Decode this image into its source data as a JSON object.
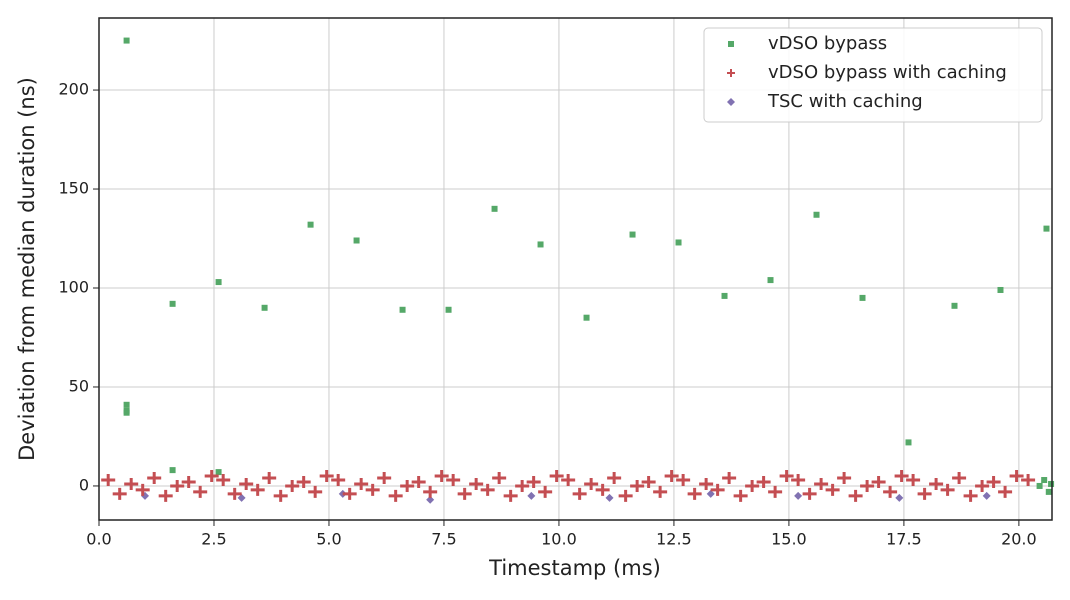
{
  "chart_data": {
    "type": "scatter",
    "x_label": "Timestamp (ms)",
    "y_label": "Deviation from median duration (ns)",
    "xlim": [
      0,
      20.72
    ],
    "ylim": [
      -17.2,
      236.4
    ],
    "xticks": [
      {
        "value": 0,
        "label": "0.0"
      },
      2.5,
      {
        "value": 5,
        "label": "5.0"
      },
      7.5,
      {
        "value": 10,
        "label": "10.0"
      },
      12.5,
      {
        "value": 15,
        "label": "15.0"
      },
      17.5,
      {
        "value": 20,
        "label": "20.0"
      }
    ],
    "yticks": [
      0,
      50,
      100,
      150,
      200
    ],
    "grid": true,
    "legend": "upper right",
    "series": [
      {
        "name": "TSC with caching",
        "color": "#8172b2",
        "marker": "diamond",
        "x": [
          1.0,
          3.1,
          5.3,
          7.2,
          9.4,
          11.1,
          13.3,
          15.2,
          17.4,
          19.3
        ],
        "values": [
          -5,
          -6,
          -4,
          -7,
          -5,
          -6,
          -4,
          -5,
          -6,
          -5
        ]
      },
      {
        "name": "vDSO bypass",
        "color": "#55a868",
        "marker": "square",
        "x": [
          0.6,
          0.6,
          0.6,
          0.6,
          1.6,
          1.6,
          2.6,
          2.6,
          3.6,
          4.6,
          5.6,
          6.6,
          7.6,
          8.6,
          9.6,
          10.6,
          11.6,
          12.6,
          13.6,
          14.6,
          15.6,
          16.6,
          17.6,
          18.6,
          19.6,
          20.6,
          20.45,
          20.55,
          20.65,
          20.7
        ],
        "values": [
          225,
          41,
          38,
          37,
          92,
          8,
          103,
          7,
          90,
          132,
          124,
          89,
          89,
          140,
          122,
          85,
          127,
          123,
          96,
          104,
          137,
          95,
          22,
          91,
          99,
          130,
          0,
          3,
          -3,
          1
        ]
      },
      {
        "name": "vDSO bypass with caching",
        "color": "#c44e52",
        "marker": "plus",
        "x": [
          0.2,
          0.45,
          0.7,
          0.95,
          1.2,
          1.45,
          1.7,
          1.95,
          2.2,
          2.45,
          2.7,
          2.95,
          3.2,
          3.45,
          3.7,
          3.95,
          4.2,
          4.45,
          4.7,
          4.95,
          5.2,
          5.45,
          5.7,
          5.95,
          6.2,
          6.45,
          6.7,
          6.95,
          7.2,
          7.45,
          7.7,
          7.95,
          8.2,
          8.45,
          8.7,
          8.95,
          9.2,
          9.45,
          9.7,
          9.95,
          10.2,
          10.45,
          10.7,
          10.95,
          11.2,
          11.45,
          11.7,
          11.95,
          12.2,
          12.45,
          12.7,
          12.95,
          13.2,
          13.45,
          13.7,
          13.95,
          14.2,
          14.45,
          14.7,
          14.95,
          15.2,
          15.45,
          15.7,
          15.95,
          16.2,
          16.45,
          16.7,
          16.95,
          17.2,
          17.45,
          17.7,
          17.95,
          18.2,
          18.45,
          18.7,
          18.95,
          19.2,
          19.45,
          19.7,
          19.95,
          20.2
        ],
        "values": [
          3,
          -4,
          1,
          -2,
          4,
          -5,
          0,
          2,
          -3,
          5,
          3,
          -4,
          1,
          -2,
          4,
          -5,
          0,
          2,
          -3,
          5,
          3,
          -4,
          1,
          -2,
          4,
          -5,
          0,
          2,
          -3,
          5,
          3,
          -4,
          1,
          -2,
          4,
          -5,
          0,
          2,
          -3,
          5,
          3,
          -4,
          1,
          -2,
          4,
          -5,
          0,
          2,
          -3,
          5,
          3,
          -4,
          1,
          -2,
          4,
          -5,
          0,
          2,
          -3,
          5,
          3,
          -4,
          1,
          -2,
          4,
          -5,
          0,
          2,
          -3,
          5,
          3,
          -4,
          1,
          -2,
          4,
          -5,
          0,
          2,
          -3,
          5,
          3
        ]
      }
    ],
    "legend_order": [
      1,
      2,
      0
    ]
  }
}
